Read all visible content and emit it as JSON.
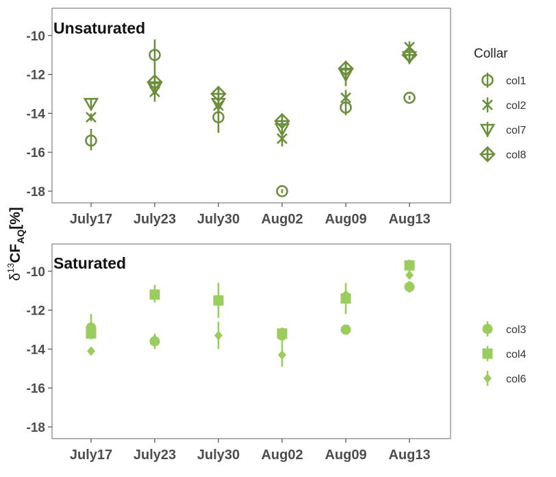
{
  "colors": {
    "unsaturated": "#6b8e3a",
    "saturated": "#9acd5e",
    "panel_border": "#7f7f7f",
    "tick_text": "#4d4d4d"
  },
  "y_axis": {
    "label_prefix": "δ",
    "label_superscript": "13",
    "label_main": "CF",
    "label_subscript": "AQ",
    "label_suffix": "[%]"
  },
  "legend": {
    "title": "Collar",
    "unsaturated_entries": [
      {
        "name": "col1",
        "shape": "circle-open-icon"
      },
      {
        "name": "col2",
        "shape": "x-mark-icon"
      },
      {
        "name": "col7",
        "shape": "triangle-down-open-icon"
      },
      {
        "name": "col8",
        "shape": "diamond-plus-open-icon"
      }
    ],
    "saturated_entries": [
      {
        "name": "col3",
        "shape": "circle-filled-icon"
      },
      {
        "name": "col4",
        "shape": "square-filled-icon"
      },
      {
        "name": "col6",
        "shape": "diamond-filled-icon"
      }
    ]
  },
  "chart_data": [
    {
      "type": "scatter",
      "title": "Unsaturated",
      "categories": [
        "July17",
        "July23",
        "July30",
        "Aug02",
        "Aug09",
        "Aug13"
      ],
      "ylim": [
        -18.6,
        -8.6
      ],
      "yticks": [
        -10,
        -12,
        -14,
        -16,
        -18
      ],
      "grid": false,
      "series": [
        {
          "name": "col1",
          "shape": "circle-open",
          "points": [
            {
              "x": "July17",
              "y": -15.4,
              "ymin": -15.9,
              "ymax": -14.8
            },
            {
              "x": "July23",
              "y": -11.0,
              "ymin": -12.0,
              "ymax": -10.2
            },
            {
              "x": "July30",
              "y": -14.2,
              "ymin": -15.0,
              "ymax": -13.4
            },
            {
              "x": "Aug02",
              "y": -18.0,
              "ymin": -18.1,
              "ymax": -17.9
            },
            {
              "x": "Aug09",
              "y": -13.7,
              "ymin": -14.1,
              "ymax": -13.3
            },
            {
              "x": "Aug13",
              "y": -13.2,
              "ymin": -13.3,
              "ymax": -13.1
            }
          ]
        },
        {
          "name": "col2",
          "shape": "x",
          "points": [
            {
              "x": "July17",
              "y": -14.2,
              "ymin": -14.4,
              "ymax": -14.0
            },
            {
              "x": "July23",
              "y": -12.9,
              "ymin": -13.4,
              "ymax": -12.4
            },
            {
              "x": "July30",
              "y": -13.6,
              "ymin": -14.0,
              "ymax": -13.2
            },
            {
              "x": "Aug02",
              "y": -15.3,
              "ymin": -15.7,
              "ymax": -14.9
            },
            {
              "x": "Aug09",
              "y": -13.2,
              "ymin": -13.6,
              "ymax": -12.8
            },
            {
              "x": "Aug13",
              "y": -10.6,
              "ymin": -10.9,
              "ymax": -10.3
            }
          ]
        },
        {
          "name": "col7",
          "shape": "triangle-down-open",
          "points": [
            {
              "x": "July17",
              "y": -13.5,
              "ymin": -13.7,
              "ymax": -13.3
            },
            {
              "x": "July23",
              "y": -12.7,
              "ymin": -13.0,
              "ymax": -12.4
            },
            {
              "x": "July30",
              "y": -13.5,
              "ymin": -13.9,
              "ymax": -13.1
            },
            {
              "x": "Aug02",
              "y": -14.8,
              "ymin": -15.2,
              "ymax": -14.4
            },
            {
              "x": "Aug09",
              "y": -12.0,
              "ymin": -12.6,
              "ymax": -11.4
            },
            {
              "x": "Aug13",
              "y": -11.1,
              "ymin": -11.4,
              "ymax": -10.8
            }
          ]
        },
        {
          "name": "col8",
          "shape": "diamond-plus-open",
          "points": [
            {
              "x": "July23",
              "y": -12.4,
              "ymin": -12.8,
              "ymax": -12.0
            },
            {
              "x": "July30",
              "y": -13.0,
              "ymin": -13.4,
              "ymax": -12.6
            },
            {
              "x": "Aug02",
              "y": -14.4,
              "ymin": -14.7,
              "ymax": -14.1
            },
            {
              "x": "Aug09",
              "y": -11.7,
              "ymin": -12.1,
              "ymax": -11.3
            },
            {
              "x": "Aug13",
              "y": -11.0,
              "ymin": -11.3,
              "ymax": -10.7
            }
          ]
        }
      ]
    },
    {
      "type": "scatter",
      "title": "Saturated",
      "categories": [
        "July17",
        "July23",
        "July30",
        "Aug02",
        "Aug09",
        "Aug13"
      ],
      "ylim": [
        -18.6,
        -8.6
      ],
      "yticks": [
        -10,
        -12,
        -14,
        -16,
        -18
      ],
      "grid": false,
      "series": [
        {
          "name": "col3",
          "shape": "circle-filled",
          "points": [
            {
              "x": "July17",
              "y": -12.9,
              "ymin": -13.4,
              "ymax": -12.2
            },
            {
              "x": "July23",
              "y": -13.6,
              "ymin": -14.0,
              "ymax": -13.2
            },
            {
              "x": "Aug02",
              "y": -13.3,
              "ymin": -13.7,
              "ymax": -12.9
            },
            {
              "x": "Aug09",
              "y": -13.0,
              "ymin": -13.2,
              "ymax": -12.8
            },
            {
              "x": "Aug13",
              "y": -10.8,
              "ymin": -11.1,
              "ymax": -10.5
            }
          ]
        },
        {
          "name": "col4",
          "shape": "square-filled",
          "points": [
            {
              "x": "July17",
              "y": -13.2,
              "ymin": -13.5,
              "ymax": -12.9
            },
            {
              "x": "July23",
              "y": -11.2,
              "ymin": -11.6,
              "ymax": -10.7
            },
            {
              "x": "July30",
              "y": -11.5,
              "ymin": -12.4,
              "ymax": -10.6
            },
            {
              "x": "Aug02",
              "y": -13.2,
              "ymin": -13.5,
              "ymax": -12.9
            },
            {
              "x": "Aug09",
              "y": -11.4,
              "ymin": -12.2,
              "ymax": -10.6
            },
            {
              "x": "Aug13",
              "y": -9.7,
              "ymin": -10.0,
              "ymax": -9.4
            }
          ]
        },
        {
          "name": "col6",
          "shape": "diamond-filled",
          "points": [
            {
              "x": "July17",
              "y": -14.1,
              "ymin": -14.2,
              "ymax": -14.0
            },
            {
              "x": "July23",
              "y": -13.5,
              "ymin": -13.7,
              "ymax": -13.3
            },
            {
              "x": "July30",
              "y": -13.3,
              "ymin": -14.0,
              "ymax": -12.6
            },
            {
              "x": "Aug02",
              "y": -14.3,
              "ymin": -14.9,
              "ymax": -13.7
            },
            {
              "x": "Aug09",
              "y": -11.2,
              "ymin": -11.4,
              "ymax": -11.0
            },
            {
              "x": "Aug13",
              "y": -10.2,
              "ymin": -10.4,
              "ymax": -10.0
            }
          ]
        }
      ]
    }
  ]
}
